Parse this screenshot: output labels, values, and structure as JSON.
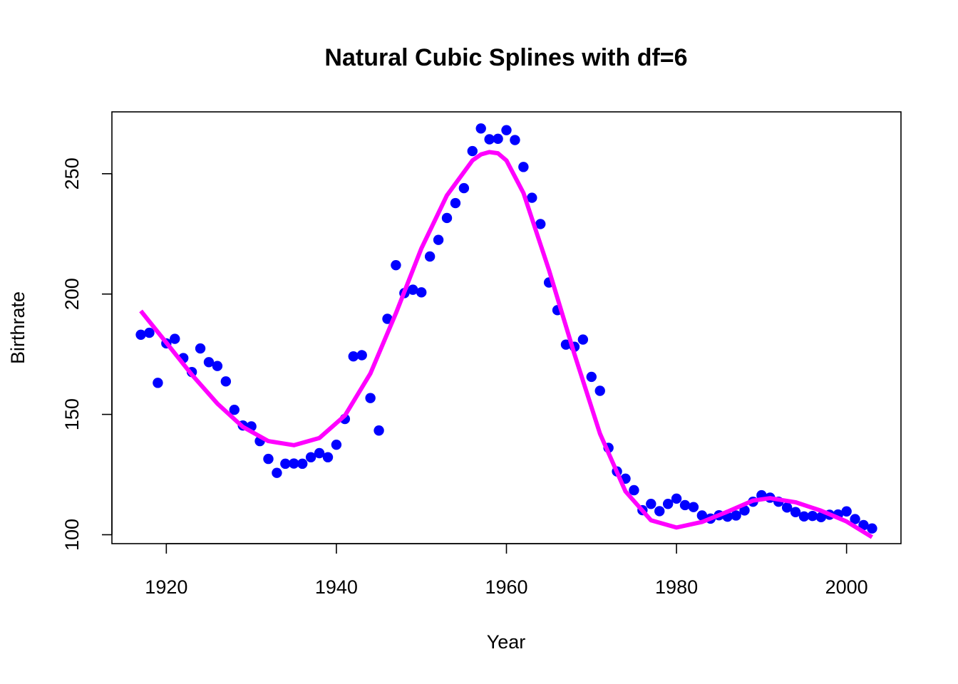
{
  "chart_data": {
    "type": "scatter",
    "title": "Natural Cubic Splines with df=6",
    "xlabel": "Year",
    "ylabel": "Birthrate",
    "xlim": [
      1913.6,
      2006.4
    ],
    "ylim": [
      96.3,
      275.7
    ],
    "x_ticks": [
      1920,
      1940,
      1960,
      1980,
      2000
    ],
    "x_tick_labels": [
      "1920",
      "1940",
      "1960",
      "1980",
      "2000"
    ],
    "y_ticks": [
      100,
      150,
      200,
      250
    ],
    "y_tick_labels": [
      "100",
      "150",
      "200",
      "250"
    ],
    "grid": false,
    "legend": "none",
    "series": [
      {
        "mark": "points",
        "color": "#0000ff",
        "x": [
          1917,
          1918,
          1919,
          1920,
          1921,
          1922,
          1923,
          1924,
          1925,
          1926,
          1927,
          1928,
          1929,
          1930,
          1931,
          1932,
          1933,
          1934,
          1935,
          1936,
          1937,
          1938,
          1939,
          1940,
          1941,
          1942,
          1943,
          1944,
          1945,
          1946,
          1947,
          1948,
          1949,
          1950,
          1951,
          1952,
          1953,
          1954,
          1955,
          1956,
          1957,
          1958,
          1959,
          1960,
          1961,
          1962,
          1963,
          1964,
          1965,
          1966,
          1967,
          1968,
          1969,
          1970,
          1971,
          1972,
          1973,
          1974,
          1975,
          1976,
          1977,
          1978,
          1979,
          1980,
          1981,
          1982,
          1983,
          1984,
          1985,
          1986,
          1987,
          1988,
          1989,
          1990,
          1991,
          1992,
          1993,
          1994,
          1995,
          1996,
          1997,
          1998,
          1999,
          2000,
          2001,
          2002,
          2003
        ],
        "y": [
          183.1,
          183.9,
          163.1,
          179.5,
          181.4,
          173.4,
          167.6,
          177.4,
          171.7,
          170.1,
          163.7,
          151.9,
          145.4,
          145.0,
          138.9,
          131.5,
          125.7,
          129.5,
          129.6,
          129.5,
          132.2,
          133.9,
          132.2,
          137.4,
          148.1,
          174.1,
          174.6,
          156.8,
          143.3,
          189.7,
          212.0,
          200.4,
          201.8,
          200.7,
          215.6,
          222.5,
          231.6,
          237.8,
          244.0,
          259.4,
          268.8,
          264.3,
          264.5,
          268.1,
          264.0,
          252.8,
          240.0,
          229.1,
          204.8,
          193.3,
          179.0,
          178.1,
          181.1,
          165.6,
          159.8,
          136.1,
          126.3,
          123.3,
          118.5,
          110.2,
          112.8,
          109.8,
          112.8,
          115.0,
          112.3,
          111.5,
          108.0,
          106.7,
          108.1,
          107.5,
          108.0,
          110.1,
          113.7,
          116.4,
          115.4,
          113.7,
          111.3,
          109.4,
          107.6,
          107.8,
          107.3,
          108.3,
          108.4,
          109.7,
          106.5,
          104.0,
          102.6
        ]
      },
      {
        "mark": "line",
        "color": "#ff00ff",
        "x": [
          1917,
          1920,
          1923,
          1926,
          1929,
          1932,
          1935,
          1938,
          1941,
          1944,
          1947,
          1950,
          1953,
          1956,
          1957,
          1958,
          1959,
          1960,
          1962,
          1965,
          1968,
          1971,
          1974,
          1977,
          1980,
          1983,
          1986,
          1989,
          1991,
          1994,
          1997,
          2000,
          2003
        ],
        "y": [
          193.0,
          179.8,
          166.5,
          154.5,
          144.8,
          138.9,
          137.2,
          140.2,
          149.5,
          167.0,
          192.0,
          219.0,
          241.0,
          255.5,
          258.0,
          259.0,
          258.5,
          255.5,
          242.0,
          210.0,
          175.0,
          142.0,
          118.0,
          106.0,
          103.0,
          105.3,
          109.6,
          114.2,
          115.2,
          113.5,
          110.0,
          105.5,
          99.0
        ]
      }
    ]
  }
}
